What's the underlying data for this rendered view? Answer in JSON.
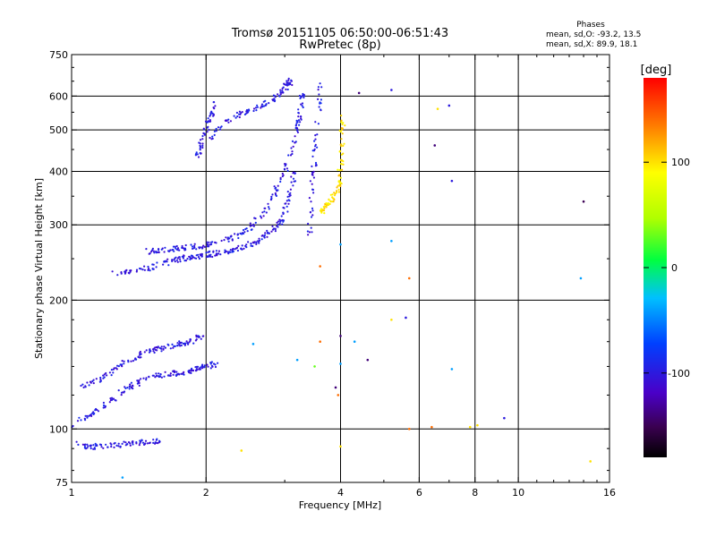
{
  "title": "Tromsø 20151105 06:50:00-06:51:43",
  "subtitle": "RwPretec (8p)",
  "phase_info": {
    "heading": "Phases",
    "line_o": "mean, sd,O: -93.2, 13.5",
    "line_x": "mean, sd,X:  89.9, 18.1"
  },
  "colorbar": {
    "label": "[deg]",
    "range": [
      -180,
      180
    ],
    "ticks": [
      "100",
      "0",
      "-100"
    ],
    "tick_values": [
      100,
      0,
      -100
    ]
  },
  "chart_data": {
    "type": "scatter",
    "title": "Tromsø 20151105 06:50:00-06:51:43",
    "subtitle": "RwPretec (8p)",
    "xlabel": "Frequency [MHz]",
    "ylabel": "Stationary phase Virtual Height [km]",
    "x_scale": "log",
    "y_scale": "log",
    "xlim": [
      1,
      16
    ],
    "ylim": [
      75,
      750
    ],
    "x_ticks": [
      1,
      2,
      4,
      6,
      8,
      10,
      16
    ],
    "x_tick_labels": [
      "1",
      "2",
      "4",
      "6",
      "8",
      "10",
      "16"
    ],
    "y_ticks": [
      75,
      100,
      200,
      300,
      400,
      500,
      600,
      750
    ],
    "y_tick_labels": [
      "75",
      "100",
      "200",
      "300",
      "400",
      "500",
      "600",
      "750"
    ],
    "x_gridlines": [
      2,
      4,
      6,
      8,
      10
    ],
    "y_gridlines": [
      100,
      200,
      300,
      400,
      500,
      600
    ],
    "color_encoding": "phase [deg]",
    "traces": [
      {
        "x": [
          1.22,
          1.35,
          1.5,
          1.65,
          1.75,
          1.85,
          1.95,
          2.05,
          2.15,
          2.3,
          2.45,
          2.6,
          2.75,
          2.9,
          3.0,
          3.08,
          3.15
        ],
        "y": [
          232,
          232,
          238,
          246,
          250,
          252,
          254,
          256,
          258,
          262,
          268,
          275,
          285,
          300,
          320,
          350,
          400
        ],
        "phase": -100
      },
      {
        "x": [
          1.48,
          1.6,
          1.72,
          1.85,
          1.98,
          2.1,
          2.3,
          2.5,
          2.7,
          2.85,
          3.0,
          3.12,
          3.2,
          3.25,
          3.28
        ],
        "y": [
          260,
          262,
          264,
          266,
          268,
          272,
          280,
          295,
          320,
          355,
          400,
          450,
          510,
          560,
          610
        ],
        "phase": -100
      },
      {
        "x": [
          2.05,
          2.2,
          2.4,
          2.6,
          2.8,
          2.95,
          3.05,
          3.1
        ],
        "y": [
          480,
          520,
          545,
          565,
          585,
          610,
          640,
          650
        ],
        "phase": -100
      },
      {
        "x": [
          1.9,
          1.95,
          2.0,
          2.05,
          2.1
        ],
        "y": [
          430,
          460,
          500,
          540,
          580
        ],
        "phase": -100
      },
      {
        "x": [
          1.0,
          1.1,
          1.2,
          1.3,
          1.4,
          1.5,
          1.6,
          1.7,
          1.8,
          1.9,
          2.0,
          2.1
        ],
        "y": [
          102,
          108,
          115,
          122,
          128,
          132,
          134,
          135,
          136,
          138,
          140,
          142
        ],
        "phase": -100
      },
      {
        "x": [
          1.05,
          1.15,
          1.25,
          1.35,
          1.45,
          1.55,
          1.65,
          1.75,
          1.85,
          1.95
        ],
        "y": [
          125,
          130,
          138,
          145,
          150,
          153,
          156,
          158,
          160,
          165
        ],
        "phase": -100
      },
      {
        "x": [
          1.02,
          1.1,
          1.2,
          1.3,
          1.4,
          1.5,
          1.6
        ],
        "y": [
          92,
          91,
          91,
          92,
          93,
          93,
          94
        ],
        "phase": -100
      },
      {
        "x": [
          3.4,
          3.45,
          3.5,
          3.55,
          3.6
        ],
        "y": [
          280,
          350,
          420,
          520,
          640
        ],
        "phase": -100
      },
      {
        "x": [
          3.6,
          3.7,
          3.8,
          3.9,
          4.0
        ],
        "y": [
          320,
          330,
          340,
          355,
          380
        ],
        "phase": 100
      },
      {
        "x": [
          3.95,
          4.0,
          4.03,
          4.05
        ],
        "y": [
          380,
          420,
          470,
          550
        ],
        "phase": 100
      }
    ],
    "scattered_points": [
      {
        "x": 6.6,
        "y": 560,
        "phase": 100
      },
      {
        "x": 7.0,
        "y": 570,
        "phase": -100
      },
      {
        "x": 6.5,
        "y": 460,
        "phase": -140
      },
      {
        "x": 7.1,
        "y": 380,
        "phase": -100
      },
      {
        "x": 5.2,
        "y": 620,
        "phase": -100
      },
      {
        "x": 4.4,
        "y": 610,
        "phase": -140
      },
      {
        "x": 14.0,
        "y": 340,
        "phase": -150
      },
      {
        "x": 13.8,
        "y": 225,
        "phase": -40
      },
      {
        "x": 5.2,
        "y": 275,
        "phase": -40
      },
      {
        "x": 5.7,
        "y": 225,
        "phase": 140
      },
      {
        "x": 4.0,
        "y": 270,
        "phase": -40
      },
      {
        "x": 3.6,
        "y": 240,
        "phase": 140
      },
      {
        "x": 3.6,
        "y": 160,
        "phase": 140
      },
      {
        "x": 4.0,
        "y": 165,
        "phase": -140
      },
      {
        "x": 3.2,
        "y": 145,
        "phase": -40
      },
      {
        "x": 3.5,
        "y": 140,
        "phase": 30
      },
      {
        "x": 4.0,
        "y": 142,
        "phase": -40
      },
      {
        "x": 4.3,
        "y": 160,
        "phase": -40
      },
      {
        "x": 4.6,
        "y": 145,
        "phase": -140
      },
      {
        "x": 5.2,
        "y": 180,
        "phase": 100
      },
      {
        "x": 5.6,
        "y": 182,
        "phase": -100
      },
      {
        "x": 3.9,
        "y": 125,
        "phase": -140
      },
      {
        "x": 3.95,
        "y": 120,
        "phase": 140
      },
      {
        "x": 7.1,
        "y": 138,
        "phase": -40
      },
      {
        "x": 5.7,
        "y": 100,
        "phase": 140
      },
      {
        "x": 6.4,
        "y": 101,
        "phase": 140
      },
      {
        "x": 7.8,
        "y": 101,
        "phase": 100
      },
      {
        "x": 8.1,
        "y": 102,
        "phase": 100
      },
      {
        "x": 9.3,
        "y": 106,
        "phase": -100
      },
      {
        "x": 2.4,
        "y": 89,
        "phase": 100
      },
      {
        "x": 4.0,
        "y": 91,
        "phase": 100
      },
      {
        "x": 14.5,
        "y": 84,
        "phase": 100
      },
      {
        "x": 1.3,
        "y": 77,
        "phase": -40
      },
      {
        "x": 2.55,
        "y": 158,
        "phase": -40
      }
    ]
  }
}
